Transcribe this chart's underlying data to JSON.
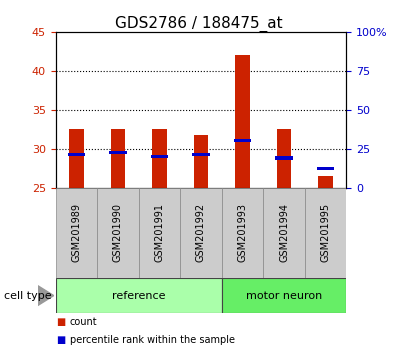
{
  "title": "GDS2786 / 188475_at",
  "samples": [
    "GSM201989",
    "GSM201990",
    "GSM201991",
    "GSM201992",
    "GSM201993",
    "GSM201994",
    "GSM201995"
  ],
  "count_values": [
    32.5,
    32.5,
    32.5,
    31.8,
    42.0,
    32.5,
    26.5
  ],
  "percentile_values": [
    29.2,
    29.5,
    29.0,
    29.2,
    31.0,
    28.8,
    27.5
  ],
  "ylim_left": [
    25,
    45
  ],
  "yticks_left": [
    25,
    30,
    35,
    40,
    45
  ],
  "ylim_right": [
    0,
    100
  ],
  "yticks_right": [
    0,
    25,
    50,
    75,
    100
  ],
  "yticklabels_right": [
    "0",
    "25",
    "50",
    "75",
    "100%"
  ],
  "bar_width": 0.35,
  "count_color": "#cc2200",
  "percentile_color": "#0000cc",
  "group_labels": [
    "reference",
    "motor neuron"
  ],
  "group_colors": [
    "#aaffaa",
    "#66ee66"
  ],
  "cell_type_label": "cell type",
  "legend_items": [
    "count",
    "percentile rank within the sample"
  ],
  "xlabel_color_left": "#cc2200",
  "xlabel_color_right": "#0000cc",
  "title_fontsize": 11,
  "label_fontsize": 7,
  "tick_fontsize": 8,
  "group_fontsize": 8
}
